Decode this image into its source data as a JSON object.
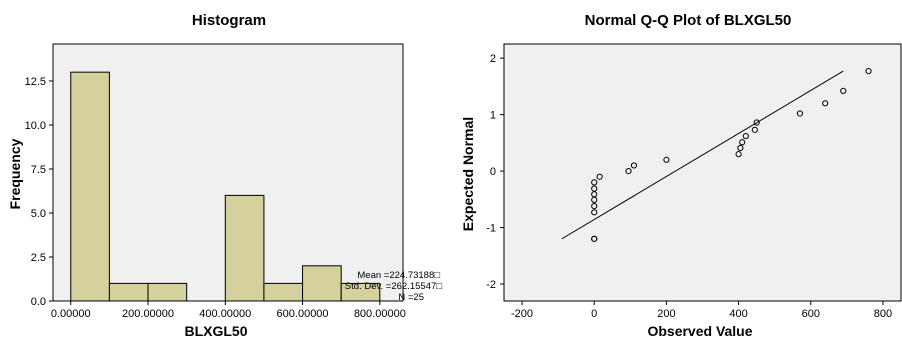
{
  "chart_data": [
    {
      "type": "bar",
      "title": "Histogram",
      "xlabel": "BLXGL50",
      "ylabel": "Frequency",
      "bins": [
        {
          "start": 0,
          "end": 100,
          "count": 13
        },
        {
          "start": 100,
          "end": 200,
          "count": 1
        },
        {
          "start": 200,
          "end": 300,
          "count": 1
        },
        {
          "start": 300,
          "end": 400,
          "count": 0
        },
        {
          "start": 400,
          "end": 500,
          "count": 6
        },
        {
          "start": 500,
          "end": 600,
          "count": 1
        },
        {
          "start": 600,
          "end": 700,
          "count": 2
        },
        {
          "start": 700,
          "end": 800,
          "count": 1
        }
      ],
      "xlim": [
        -46,
        860
      ],
      "ylim": [
        0,
        14.6
      ],
      "xticks": [
        0,
        200,
        400,
        600,
        800
      ],
      "xtick_labels": [
        "0.00000",
        "200.00000",
        "400.00000",
        "600.00000",
        "800.00000"
      ],
      "yticks": [
        0.0,
        2.5,
        5.0,
        7.5,
        10.0,
        12.5
      ],
      "ytick_labels": [
        "0.0",
        "2.5",
        "5.0",
        "7.5",
        "10.0",
        "12.5"
      ],
      "bar_color": "#d4d19c",
      "background": "#f0f0f0",
      "stats": [
        "Mean =224.73188□",
        "Std. Dev. =262.15547□",
        "N =25"
      ]
    },
    {
      "type": "scatter",
      "title": "Normal Q-Q Plot of BLXGL50",
      "xlabel": "Observed Value",
      "ylabel": "Expected Normal",
      "xlim": [
        -250,
        850
      ],
      "ylim": [
        -2.3,
        2.25
      ],
      "xticks": [
        -200,
        0,
        200,
        400,
        600,
        800
      ],
      "xtick_labels": [
        "-200",
        "0",
        "200",
        "400",
        "600",
        "800"
      ],
      "yticks": [
        -2,
        -1,
        0,
        1,
        2
      ],
      "ytick_labels": [
        "-2",
        "-1",
        "0",
        "1",
        "2"
      ],
      "points": [
        {
          "x": 0,
          "y": -1.2
        },
        {
          "x": 0,
          "y": -1.2
        },
        {
          "x": 0,
          "y": -0.73
        },
        {
          "x": 0,
          "y": -0.62
        },
        {
          "x": 0,
          "y": -0.51
        },
        {
          "x": 0,
          "y": -0.41
        },
        {
          "x": 0,
          "y": -0.31
        },
        {
          "x": 0,
          "y": -0.2
        },
        {
          "x": 15,
          "y": -0.1
        },
        {
          "x": 95,
          "y": 0.0
        },
        {
          "x": 110,
          "y": 0.1
        },
        {
          "x": 200,
          "y": 0.2
        },
        {
          "x": 400,
          "y": 0.3
        },
        {
          "x": 405,
          "y": 0.41
        },
        {
          "x": 410,
          "y": 0.51
        },
        {
          "x": 420,
          "y": 0.62
        },
        {
          "x": 445,
          "y": 0.73
        },
        {
          "x": 450,
          "y": 0.86
        },
        {
          "x": 570,
          "y": 1.02
        },
        {
          "x": 640,
          "y": 1.2
        },
        {
          "x": 690,
          "y": 1.42
        },
        {
          "x": 760,
          "y": 1.77
        }
      ],
      "reference_line": [
        {
          "x": -90,
          "y": -1.2
        },
        {
          "x": 690,
          "y": 1.77
        }
      ],
      "background": "#f0f0f0"
    }
  ]
}
